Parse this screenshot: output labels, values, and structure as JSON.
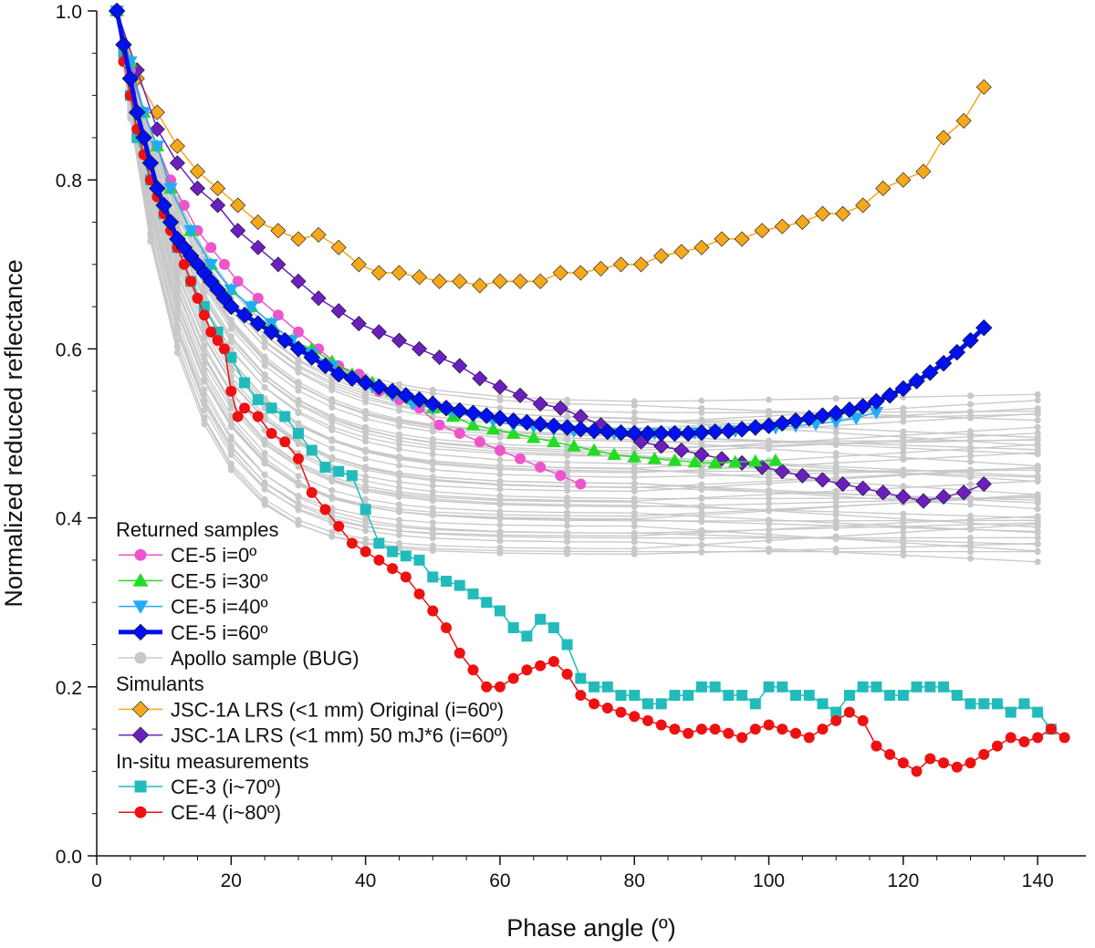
{
  "chart_data": {
    "type": "line",
    "xlabel": "Phase angle (º)",
    "ylabel": "Normalized reduced reflectance",
    "xlim": [
      0,
      145
    ],
    "ylim": [
      0.0,
      1.0
    ],
    "x_ticks": [
      0,
      20,
      40,
      60,
      80,
      100,
      120,
      140
    ],
    "x_tick_labels": [
      "0",
      "20",
      "40",
      "60",
      "80",
      "100",
      "120",
      "140"
    ],
    "y_ticks": [
      0.0,
      0.2,
      0.4,
      0.6,
      0.8,
      1.0
    ],
    "y_tick_labels": [
      "0.0",
      "0.2",
      "0.4",
      "0.6",
      "0.8",
      "1.0"
    ],
    "grid": false,
    "legend_position": "bottom-left",
    "legend_groups": [
      {
        "title": "Returned samples",
        "series_keys": [
          "ce5_i0",
          "ce5_i30",
          "ce5_i40",
          "ce5_i60",
          "apollo"
        ]
      },
      {
        "title": "Simulants",
        "series_keys": [
          "jsc_orig",
          "jsc_50mj"
        ]
      },
      {
        "title": "In-situ measurements",
        "series_keys": [
          "ce3",
          "ce4"
        ]
      }
    ],
    "series": {
      "ce5_i0": {
        "name": "CE-5 i=0º",
        "color": "#ee55cc",
        "marker": "circle",
        "line_width": 1.5,
        "x": [
          3,
          5,
          7,
          9,
          11,
          13,
          15,
          17,
          19,
          21,
          24,
          27,
          30,
          33,
          36,
          39,
          42,
          45,
          48,
          51,
          54,
          57,
          60,
          63,
          66,
          69,
          72
        ],
        "y": [
          1.0,
          0.93,
          0.88,
          0.84,
          0.8,
          0.77,
          0.74,
          0.72,
          0.7,
          0.68,
          0.66,
          0.64,
          0.62,
          0.6,
          0.58,
          0.57,
          0.55,
          0.54,
          0.53,
          0.51,
          0.5,
          0.49,
          0.48,
          0.47,
          0.46,
          0.45,
          0.44
        ]
      },
      "ce5_i30": {
        "name": "CE-5 i=30º",
        "color": "#22dd22",
        "marker": "triangle-up",
        "line_width": 1.5,
        "x": [
          3,
          5,
          7,
          9,
          11,
          14,
          17,
          20,
          23,
          26,
          29,
          32,
          35,
          38,
          41,
          44,
          47,
          50,
          53,
          56,
          59,
          62,
          65,
          68,
          71,
          74,
          77,
          80,
          83,
          86,
          89,
          92,
          95,
          98,
          101
        ],
        "y": [
          1.0,
          0.94,
          0.88,
          0.84,
          0.79,
          0.74,
          0.7,
          0.67,
          0.65,
          0.63,
          0.61,
          0.6,
          0.585,
          0.57,
          0.56,
          0.55,
          0.54,
          0.53,
          0.52,
          0.51,
          0.505,
          0.5,
          0.495,
          0.49,
          0.485,
          0.48,
          0.475,
          0.472,
          0.47,
          0.468,
          0.466,
          0.465,
          0.466,
          0.467,
          0.468
        ]
      },
      "ce5_i40": {
        "name": "CE-5 i=40º",
        "color": "#22aaff",
        "marker": "triangle-down",
        "line_width": 1.5,
        "x": [
          3,
          5,
          7,
          9,
          11,
          14,
          17,
          20,
          23,
          26,
          29,
          32,
          35,
          38,
          41,
          44,
          47,
          50,
          53,
          56,
          59,
          62,
          65,
          68,
          71,
          74,
          77,
          80,
          83,
          86,
          89,
          92,
          95,
          98,
          101,
          104,
          107,
          110,
          113,
          116
        ],
        "y": [
          1.0,
          0.94,
          0.88,
          0.84,
          0.79,
          0.74,
          0.7,
          0.67,
          0.65,
          0.63,
          0.61,
          0.595,
          0.58,
          0.565,
          0.555,
          0.545,
          0.535,
          0.53,
          0.525,
          0.52,
          0.515,
          0.51,
          0.508,
          0.505,
          0.503,
          0.501,
          0.5,
          0.5,
          0.5,
          0.5,
          0.501,
          0.502,
          0.503,
          0.505,
          0.507,
          0.509,
          0.511,
          0.514,
          0.518,
          0.525
        ]
      },
      "ce5_i60": {
        "name": "CE-5 i=60º",
        "color": "#0011ee",
        "marker": "diamond",
        "line_width": 5,
        "x": [
          3,
          4,
          5,
          6,
          7,
          8,
          9,
          10,
          11,
          12,
          13,
          14,
          15,
          16,
          17,
          18,
          19,
          20,
          22,
          24,
          26,
          28,
          30,
          32,
          34,
          36,
          38,
          40,
          42,
          44,
          46,
          48,
          50,
          52,
          54,
          56,
          58,
          60,
          62,
          64,
          66,
          68,
          70,
          72,
          74,
          76,
          78,
          80,
          82,
          84,
          86,
          88,
          90,
          92,
          94,
          96,
          98,
          100,
          102,
          104,
          106,
          108,
          110,
          112,
          114,
          116,
          118,
          120,
          122,
          124,
          126,
          128,
          130,
          132
        ],
        "y": [
          1.0,
          0.96,
          0.92,
          0.88,
          0.85,
          0.82,
          0.79,
          0.77,
          0.75,
          0.73,
          0.72,
          0.71,
          0.7,
          0.69,
          0.68,
          0.67,
          0.66,
          0.65,
          0.64,
          0.63,
          0.62,
          0.61,
          0.6,
          0.59,
          0.58,
          0.57,
          0.565,
          0.56,
          0.555,
          0.55,
          0.545,
          0.54,
          0.535,
          0.53,
          0.527,
          0.524,
          0.521,
          0.518,
          0.515,
          0.513,
          0.511,
          0.509,
          0.507,
          0.505,
          0.503,
          0.502,
          0.501,
          0.5,
          0.5,
          0.5,
          0.5,
          0.5,
          0.501,
          0.502,
          0.503,
          0.505,
          0.507,
          0.509,
          0.512,
          0.515,
          0.518,
          0.521,
          0.524,
          0.528,
          0.532,
          0.538,
          0.545,
          0.553,
          0.562,
          0.572,
          0.583,
          0.596,
          0.61,
          0.625
        ]
      },
      "apollo": {
        "name": "Apollo sample (BUG)",
        "color": "#c8c8c8",
        "marker": "circle",
        "line_width": 1.3
      },
      "jsc_orig": {
        "name": "JSC-1A LRS (<1 mm) Original (i=60º)",
        "color": "#f5a81c",
        "marker": "diamond",
        "line_width": 1.5,
        "x": [
          3,
          6,
          9,
          12,
          15,
          18,
          21,
          24,
          27,
          30,
          33,
          36,
          39,
          42,
          45,
          48,
          51,
          54,
          57,
          60,
          63,
          66,
          69,
          72,
          75,
          78,
          81,
          84,
          87,
          90,
          93,
          96,
          99,
          102,
          105,
          108,
          111,
          114,
          117,
          120,
          123,
          126,
          129,
          132
        ],
        "y": [
          1.0,
          0.92,
          0.88,
          0.84,
          0.81,
          0.79,
          0.77,
          0.75,
          0.74,
          0.73,
          0.735,
          0.72,
          0.7,
          0.69,
          0.69,
          0.685,
          0.68,
          0.68,
          0.675,
          0.68,
          0.68,
          0.68,
          0.69,
          0.69,
          0.695,
          0.7,
          0.7,
          0.71,
          0.715,
          0.72,
          0.73,
          0.73,
          0.74,
          0.745,
          0.75,
          0.76,
          0.76,
          0.77,
          0.79,
          0.8,
          0.81,
          0.85,
          0.87,
          0.91
        ]
      },
      "jsc_50mj": {
        "name": "JSC-1A LRS (<1 mm) 50 mJ*6 (i=60º)",
        "color": "#6a1fbf",
        "marker": "diamond",
        "line_width": 1.5,
        "x": [
          3,
          6,
          9,
          12,
          15,
          18,
          21,
          24,
          27,
          30,
          33,
          36,
          39,
          42,
          45,
          48,
          51,
          54,
          57,
          60,
          63,
          66,
          69,
          72,
          75,
          78,
          81,
          84,
          87,
          90,
          93,
          96,
          99,
          102,
          105,
          108,
          111,
          114,
          117,
          120,
          123,
          126,
          129,
          132
        ],
        "y": [
          1.0,
          0.93,
          0.86,
          0.82,
          0.79,
          0.77,
          0.74,
          0.72,
          0.7,
          0.68,
          0.66,
          0.645,
          0.63,
          0.62,
          0.61,
          0.6,
          0.59,
          0.58,
          0.565,
          0.555,
          0.545,
          0.535,
          0.53,
          0.52,
          0.51,
          0.5,
          0.49,
          0.485,
          0.48,
          0.475,
          0.47,
          0.465,
          0.46,
          0.455,
          0.45,
          0.445,
          0.44,
          0.435,
          0.43,
          0.425,
          0.42,
          0.425,
          0.43,
          0.44
        ]
      },
      "ce3": {
        "name": "CE-3 (i~70º)",
        "color": "#22bbbb",
        "marker": "square",
        "line_width": 1.5,
        "x": [
          3,
          4,
          5,
          6,
          8,
          10,
          12,
          14,
          16,
          18,
          20,
          22,
          24,
          26,
          28,
          30,
          32,
          34,
          36,
          38,
          40,
          42,
          44,
          46,
          48,
          50,
          52,
          54,
          56,
          58,
          60,
          62,
          64,
          66,
          68,
          70,
          72,
          74,
          76,
          78,
          80,
          82,
          84,
          86,
          88,
          90,
          92,
          94,
          96,
          98,
          100,
          102,
          104,
          106,
          108,
          110,
          112,
          114,
          116,
          118,
          120,
          122,
          124,
          126,
          128,
          130,
          132,
          134,
          136,
          138,
          140,
          142
        ],
        "y": [
          1.0,
          0.95,
          0.9,
          0.85,
          0.8,
          0.76,
          0.72,
          0.68,
          0.65,
          0.62,
          0.59,
          0.56,
          0.54,
          0.53,
          0.52,
          0.5,
          0.48,
          0.46,
          0.455,
          0.45,
          0.41,
          0.37,
          0.36,
          0.355,
          0.35,
          0.33,
          0.325,
          0.32,
          0.31,
          0.3,
          0.29,
          0.27,
          0.26,
          0.28,
          0.27,
          0.25,
          0.21,
          0.2,
          0.2,
          0.19,
          0.19,
          0.18,
          0.18,
          0.19,
          0.19,
          0.2,
          0.2,
          0.19,
          0.19,
          0.18,
          0.2,
          0.2,
          0.19,
          0.19,
          0.18,
          0.17,
          0.19,
          0.2,
          0.2,
          0.19,
          0.19,
          0.2,
          0.2,
          0.2,
          0.19,
          0.18,
          0.18,
          0.18,
          0.17,
          0.18,
          0.17,
          0.15
        ]
      },
      "ce4": {
        "name": "CE-4 (i~80º)",
        "color": "#ee1111",
        "marker": "circle",
        "line_width": 1.5,
        "x": [
          3,
          4,
          5,
          6,
          7,
          8,
          9,
          10,
          11,
          12,
          13,
          14,
          15,
          16,
          17,
          18,
          19,
          20,
          21,
          22,
          24,
          26,
          28,
          30,
          32,
          34,
          36,
          38,
          40,
          42,
          44,
          46,
          48,
          50,
          52,
          54,
          56,
          58,
          60,
          62,
          64,
          66,
          68,
          70,
          72,
          74,
          76,
          78,
          80,
          82,
          84,
          86,
          88,
          90,
          92,
          94,
          96,
          98,
          100,
          102,
          104,
          106,
          108,
          110,
          112,
          114,
          116,
          118,
          120,
          122,
          124,
          126,
          128,
          130,
          132,
          134,
          136,
          138,
          140,
          142,
          144
        ],
        "y": [
          1.0,
          0.94,
          0.9,
          0.86,
          0.83,
          0.8,
          0.78,
          0.76,
          0.74,
          0.72,
          0.7,
          0.68,
          0.66,
          0.64,
          0.62,
          0.61,
          0.6,
          0.55,
          0.52,
          0.53,
          0.52,
          0.5,
          0.49,
          0.47,
          0.43,
          0.41,
          0.39,
          0.37,
          0.36,
          0.35,
          0.34,
          0.33,
          0.31,
          0.29,
          0.27,
          0.24,
          0.22,
          0.2,
          0.2,
          0.21,
          0.22,
          0.225,
          0.23,
          0.215,
          0.19,
          0.18,
          0.175,
          0.17,
          0.165,
          0.16,
          0.155,
          0.15,
          0.145,
          0.15,
          0.15,
          0.145,
          0.14,
          0.15,
          0.155,
          0.15,
          0.145,
          0.14,
          0.15,
          0.16,
          0.17,
          0.16,
          0.13,
          0.12,
          0.11,
          0.1,
          0.115,
          0.11,
          0.105,
          0.11,
          0.12,
          0.13,
          0.14,
          0.135,
          0.14,
          0.15,
          0.14
        ]
      }
    }
  }
}
